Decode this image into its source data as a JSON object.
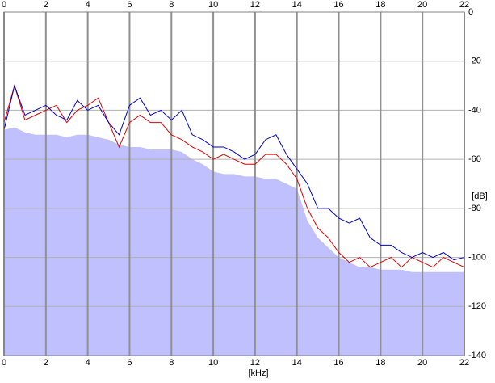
{
  "chart_data": {
    "type": "line",
    "x_label": "[kHz]",
    "y_label": "[dB]",
    "x": [
      0,
      0.5,
      1,
      1.5,
      2,
      2.5,
      3,
      3.5,
      4,
      4.5,
      5,
      5.5,
      6,
      6.5,
      7,
      7.5,
      8,
      8.5,
      9,
      9.5,
      10,
      10.5,
      11,
      11.5,
      12,
      12.5,
      13,
      13.5,
      14,
      14.5,
      15,
      15.5,
      16,
      16.5,
      17,
      17.5,
      18,
      18.5,
      19,
      19.5,
      20,
      20.5,
      21,
      21.5,
      22
    ],
    "series": [
      {
        "kind": "area",
        "color": "#c0c0ff",
        "values": [
          -48,
          -47,
          -49,
          -50,
          -50,
          -50,
          -51,
          -50,
          -50,
          -51,
          -52,
          -54,
          -55,
          -55,
          -56,
          -56,
          -56,
          -57,
          -60,
          -62,
          -65,
          -66,
          -66,
          -67,
          -67,
          -68,
          -68,
          -70,
          -72,
          -85,
          -92,
          -96,
          -100,
          -102,
          -104,
          -104,
          -105,
          -105,
          -105,
          -106,
          -106,
          -106,
          -106,
          -106,
          -106
        ]
      },
      {
        "kind": "line",
        "color": "#e00000",
        "values": [
          -45,
          -30,
          -44,
          -42,
          -40,
          -38,
          -45,
          -40,
          -38,
          -35,
          -45,
          -55,
          -45,
          -42,
          -45,
          -45,
          -50,
          -52,
          -55,
          -57,
          -60,
          -58,
          -60,
          -62,
          -62,
          -58,
          -58,
          -62,
          -68,
          -80,
          -88,
          -92,
          -98,
          -102,
          -100,
          -104,
          -102,
          -100,
          -104,
          -100,
          -102,
          -104,
          -100,
          -102,
          -104
        ]
      },
      {
        "kind": "line",
        "color": "#0000c0",
        "values": [
          -48,
          -30,
          -42,
          -40,
          -38,
          -42,
          -44,
          -36,
          -40,
          -38,
          -45,
          -50,
          -38,
          -35,
          -42,
          -40,
          -44,
          -40,
          -50,
          -52,
          -55,
          -55,
          -57,
          -60,
          -58,
          -52,
          -50,
          -58,
          -64,
          -70,
          -80,
          -80,
          -84,
          -86,
          -84,
          -92,
          -95,
          -95,
          -98,
          -100,
          -98,
          -100,
          -98,
          -101,
          -100
        ]
      }
    ],
    "xlim": [
      0,
      22
    ],
    "xticks": [
      0,
      2,
      4,
      6,
      8,
      10,
      12,
      14,
      16,
      18,
      20,
      22
    ],
    "ylim": [
      -140,
      0
    ],
    "yticks": [
      0,
      -20,
      -40,
      -60,
      -80,
      -100,
      -120,
      -140
    ],
    "grid": true
  }
}
